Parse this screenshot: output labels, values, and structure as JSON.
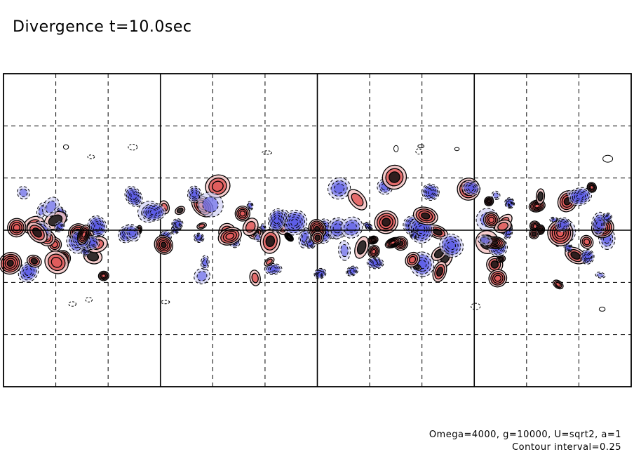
{
  "title": "Divergence t=10.0sec",
  "params_line": "Omega=4000, g=10000, U=sqrt2, a=1",
  "contour_line": "Contour interval=0.25",
  "colors": {
    "positive_fill": "#e05a5a",
    "positive_light": "#f4c4c4",
    "negative_fill": "#5a5ae6",
    "negative_light": "#c8c8f4",
    "frame": "#000000",
    "background": "#ffffff"
  },
  "grid": {
    "major_columns": 4,
    "minor_columns_per_major": 3,
    "rows": 6,
    "equator_line": true,
    "grid_style": "dashed"
  }
}
